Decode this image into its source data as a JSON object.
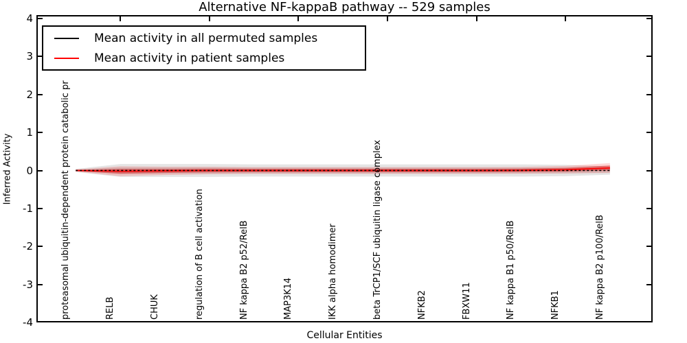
{
  "title": "Alternative NF-kappaB pathway -- 529 samples",
  "axes": {
    "ylabel": "Inferred Activity",
    "xlabel": "Cellular Entities",
    "ytick_labels": [
      "4",
      "3",
      "2",
      "1",
      "0",
      "-1",
      "-2",
      "-3",
      "-4"
    ],
    "ylim": [
      -4,
      4
    ]
  },
  "legend": {
    "items": [
      {
        "label": "Mean activity in all permuted samples",
        "color": "#000000"
      },
      {
        "label": "Mean activity in patient samples",
        "color": "#ff0000"
      }
    ]
  },
  "chart_data": {
    "type": "line",
    "title": "Alternative NF-kappaB pathway -- 529 samples",
    "xlabel": "Cellular Entities",
    "ylabel": "Inferred Activity",
    "ylim": [
      -4,
      4
    ],
    "grid": false,
    "legend_position": "upper left",
    "categories": [
      "proteasomal ubiquitin-dependent protein catabolic pr",
      "RELB",
      "CHUK",
      "regulation of B cell activation",
      "NF kappa B2 p52/RelB",
      "MAP3K14",
      "IKK alpha homodimer",
      "beta TrCP1/SCF ubiquitin ligase complex",
      "NFKB2",
      "FBXW11",
      "NF kappa B1 p50/RelB",
      "NFKB1",
      "NF kappa B2 p100/RelB"
    ],
    "series": [
      {
        "name": "Mean activity in all permuted samples",
        "color": "#000000",
        "line_style": "dashed",
        "values": [
          0,
          0,
          0,
          0,
          0,
          0,
          0,
          0,
          0,
          0,
          0,
          0,
          0
        ],
        "band_std": [
          0.04,
          0.17,
          0.17,
          0.17,
          0.16,
          0.16,
          0.16,
          0.16,
          0.16,
          0.16,
          0.16,
          0.15,
          0.11
        ]
      },
      {
        "name": "Mean activity in patient samples",
        "color": "#ff0000",
        "line_style": "solid",
        "values": [
          0,
          -0.02,
          -0.01,
          0,
          0,
          0,
          0,
          0,
          0,
          0,
          0.005,
          0.02,
          0.065
        ],
        "band_std": [
          0.03,
          0.13,
          0.11,
          0.1,
          0.09,
          0.09,
          0.09,
          0.09,
          0.09,
          0.09,
          0.09,
          0.1,
          0.13
        ]
      }
    ]
  }
}
